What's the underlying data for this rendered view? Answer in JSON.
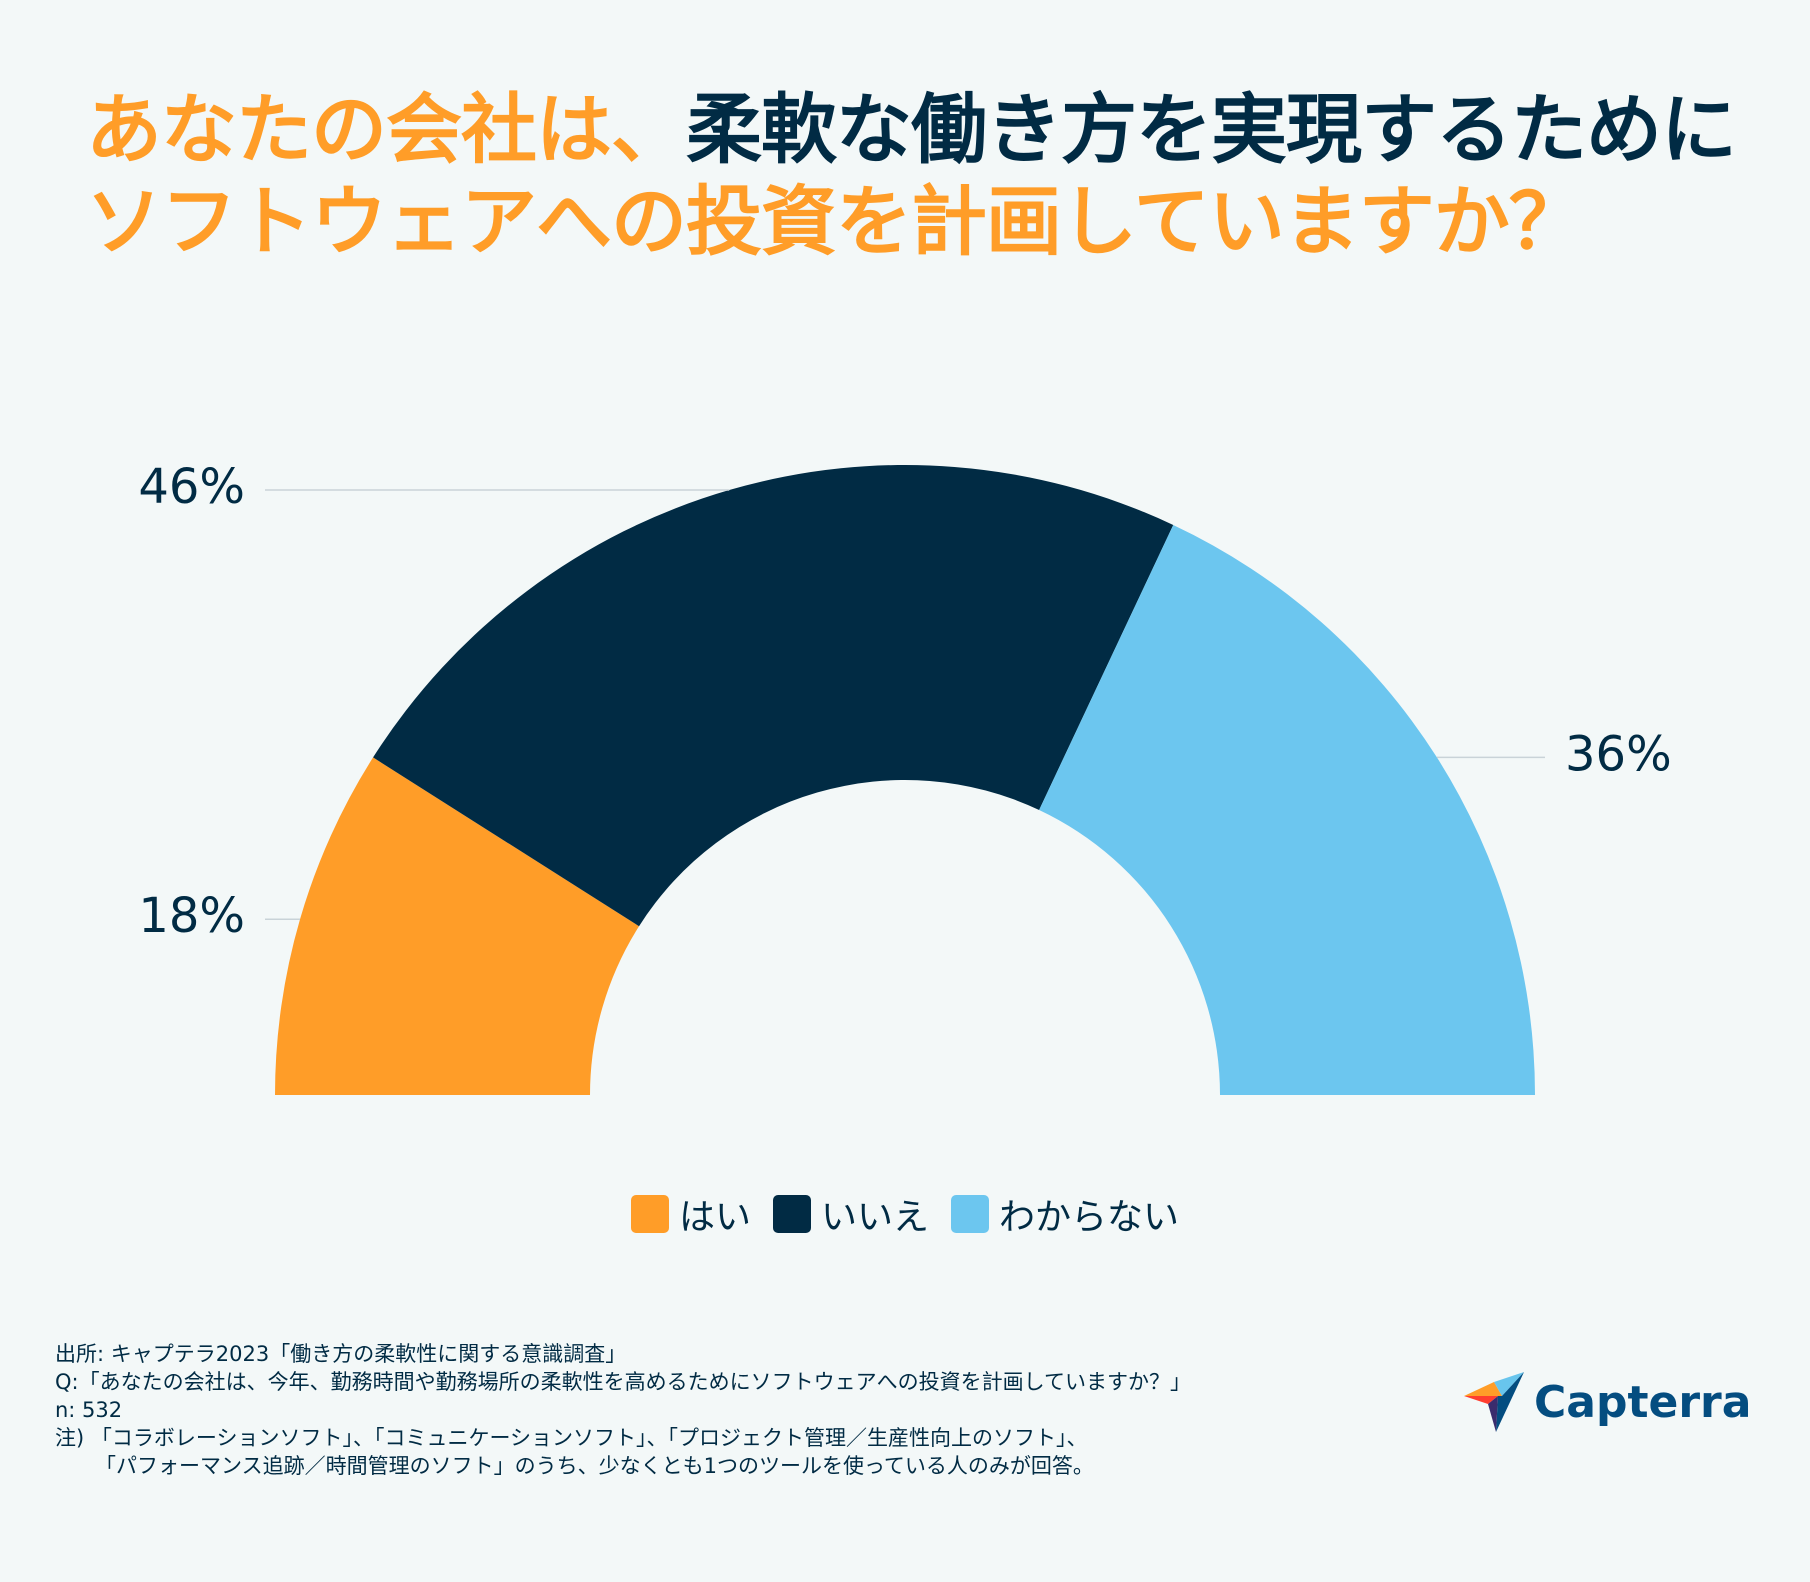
{
  "title": {
    "line1_part1": "あなたの会社は、",
    "line1_part2": "柔軟な働き方を実現するために",
    "line2": "ソフトウェアへの投資を計画していますか？"
  },
  "chart_data": {
    "type": "pie",
    "variant": "semi-donut",
    "categories": [
      "はい",
      "いいえ",
      "わからない"
    ],
    "values": [
      18,
      46,
      36
    ],
    "value_labels": [
      "18%",
      "46%",
      "36%"
    ],
    "colors": [
      "#ff9d28",
      "#012b44",
      "#6cc6ef"
    ],
    "legend_position": "bottom-center"
  },
  "legend": {
    "items": [
      {
        "label": "はい",
        "color": "#ff9d28"
      },
      {
        "label": "いいえ",
        "color": "#012b44"
      },
      {
        "label": "わからない",
        "color": "#6cc6ef"
      }
    ]
  },
  "footnotes": {
    "source": "出所: キャプテラ2023「働き方の柔軟性に関する意識調査」",
    "question": "Q:「あなたの会社は、今年、勤務時間や勤務場所の柔軟性を高めるためにソフトウェアへの投資を計画していますか？」",
    "n": "n: 532",
    "note_line1": "注) 「コラボレーションソフト」、「コミュニケーションソフト」、「プロジェクト管理／生産性向上のソフト」、",
    "note_line2": "「パフォーマンス追跡／時間管理のソフト」のうち、少なくとも1つのツールを使っている人のみが回答。"
  },
  "logo": {
    "text": "Capterra"
  }
}
